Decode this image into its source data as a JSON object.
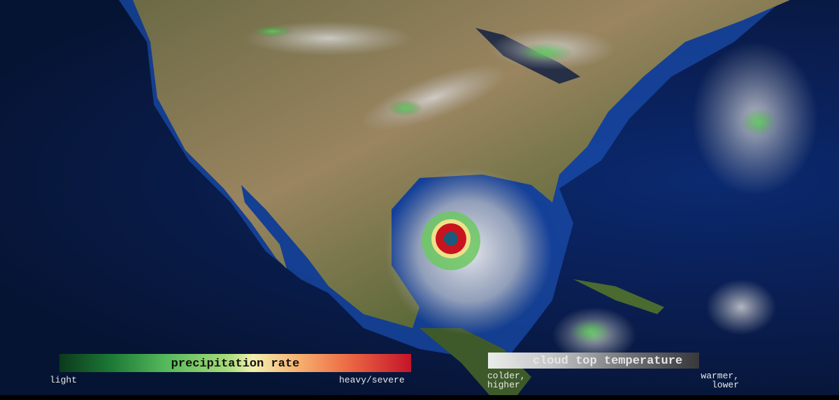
{
  "map": {
    "region": "North America",
    "ocean_color": "#0a1f55",
    "land_color": "#8a7550"
  },
  "legends": {
    "precipitation": {
      "title": "precipitation rate",
      "low_label": "light",
      "high_label": "heavy/severe",
      "colors": [
        "#0b3a1c",
        "#54b85a",
        "#f3f0b0",
        "#ec6a44",
        "#c4142a"
      ]
    },
    "cloud_top": {
      "title": "cloud top temperature",
      "low_label_line1": "colder,",
      "low_label_line2": "higher",
      "high_label_line1": "warmer,",
      "high_label_line2": "lower",
      "colors": [
        "#f4f4f4",
        "#3a3a3a"
      ]
    }
  }
}
